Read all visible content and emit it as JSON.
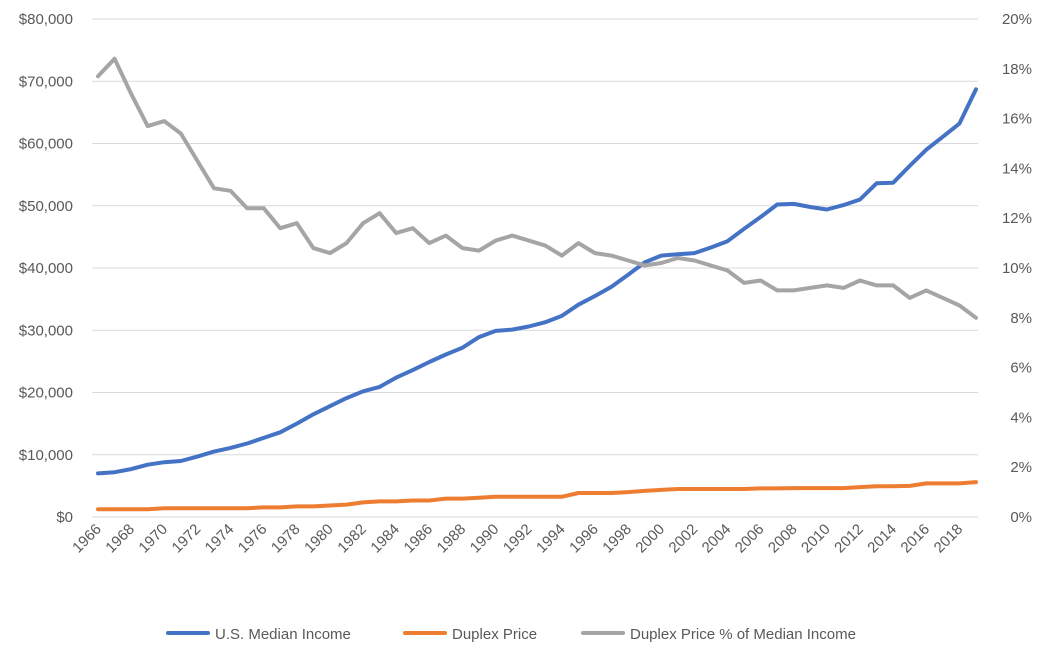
{
  "chart_data": {
    "type": "line",
    "x": [
      1966,
      1967,
      1968,
      1969,
      1970,
      1971,
      1972,
      1973,
      1974,
      1975,
      1976,
      1977,
      1978,
      1979,
      1980,
      1981,
      1982,
      1983,
      1984,
      1985,
      1986,
      1987,
      1988,
      1989,
      1990,
      1991,
      1992,
      1993,
      1994,
      1995,
      1996,
      1997,
      1998,
      1999,
      2000,
      2001,
      2002,
      2003,
      2004,
      2005,
      2006,
      2007,
      2008,
      2009,
      2010,
      2011,
      2012,
      2013,
      2014,
      2015,
      2016,
      2017,
      2018,
      2019
    ],
    "x_tick_labels": [
      "1966",
      "1968",
      "1970",
      "1972",
      "1974",
      "1976",
      "1978",
      "1980",
      "1982",
      "1984",
      "1986",
      "1988",
      "1990",
      "1992",
      "1994",
      "1996",
      "1998",
      "2000",
      "2002",
      "2004",
      "2006",
      "2008",
      "2010",
      "2012",
      "2014",
      "2016",
      "2018"
    ],
    "y_left": {
      "ylim": [
        0,
        80000
      ],
      "tick_labels": [
        "$0",
        "$10,000",
        "$20,000",
        "$30,000",
        "$40,000",
        "$50,000",
        "$60,000",
        "$70,000",
        "$80,000"
      ]
    },
    "y_right": {
      "ylim": [
        0,
        20
      ],
      "tick_labels": [
        "0%",
        "2%",
        "4%",
        "6%",
        "8%",
        "10%",
        "12%",
        "14%",
        "16%",
        "18%",
        "20%"
      ]
    },
    "series": [
      {
        "name": "U.S. Median Income",
        "axis": "left",
        "color": "#4472C4",
        "values": [
          7000,
          7200,
          7700,
          8400,
          8800,
          9000,
          9700,
          10500,
          11100,
          11800,
          12700,
          13600,
          15000,
          16500,
          17800,
          19100,
          20200,
          20900,
          22400,
          23600,
          24900,
          26100,
          27200,
          28900,
          29900,
          30100,
          30600,
          31300,
          32300,
          34100,
          35500,
          37000,
          38900,
          40900,
          42000,
          42200,
          42400,
          43300,
          44300,
          46300,
          48200,
          50200,
          50300,
          49800,
          49400,
          50100,
          51000,
          53600,
          53700,
          56400,
          59000,
          61100,
          63200,
          68700
        ]
      },
      {
        "name": "Duplex Price",
        "axis": "left",
        "color": "#ED7D31",
        "values": [
          1250,
          1250,
          1250,
          1250,
          1400,
          1400,
          1400,
          1400,
          1400,
          1400,
          1550,
          1550,
          1700,
          1700,
          1850,
          2000,
          2350,
          2500,
          2500,
          2650,
          2650,
          2950,
          2950,
          3100,
          3250,
          3250,
          3250,
          3250,
          3250,
          3850,
          3850,
          3850,
          4000,
          4200,
          4350,
          4500,
          4500,
          4500,
          4500,
          4500,
          4600,
          4600,
          4650,
          4650,
          4650,
          4650,
          4800,
          4950,
          4950,
          5000,
          5400,
          5400,
          5400,
          5600
        ]
      },
      {
        "name": "Duplex Price % of Median Income",
        "axis": "right",
        "color": "#A5A5A5",
        "values": [
          17.7,
          18.4,
          17.0,
          15.7,
          15.9,
          15.4,
          14.3,
          13.2,
          13.1,
          12.4,
          12.4,
          11.6,
          11.8,
          10.8,
          10.6,
          11.0,
          11.8,
          12.2,
          11.4,
          11.6,
          11.0,
          11.3,
          10.8,
          10.7,
          11.1,
          11.3,
          11.1,
          10.9,
          10.5,
          11.0,
          10.6,
          10.5,
          10.3,
          10.1,
          10.2,
          10.4,
          10.3,
          10.1,
          9.9,
          9.4,
          9.5,
          9.1,
          9.1,
          9.2,
          9.3,
          9.2,
          9.5,
          9.3,
          9.3,
          8.8,
          9.1,
          8.8,
          8.5,
          8.0
        ]
      }
    ],
    "grid": "horizontal",
    "legend_position": "bottom"
  }
}
